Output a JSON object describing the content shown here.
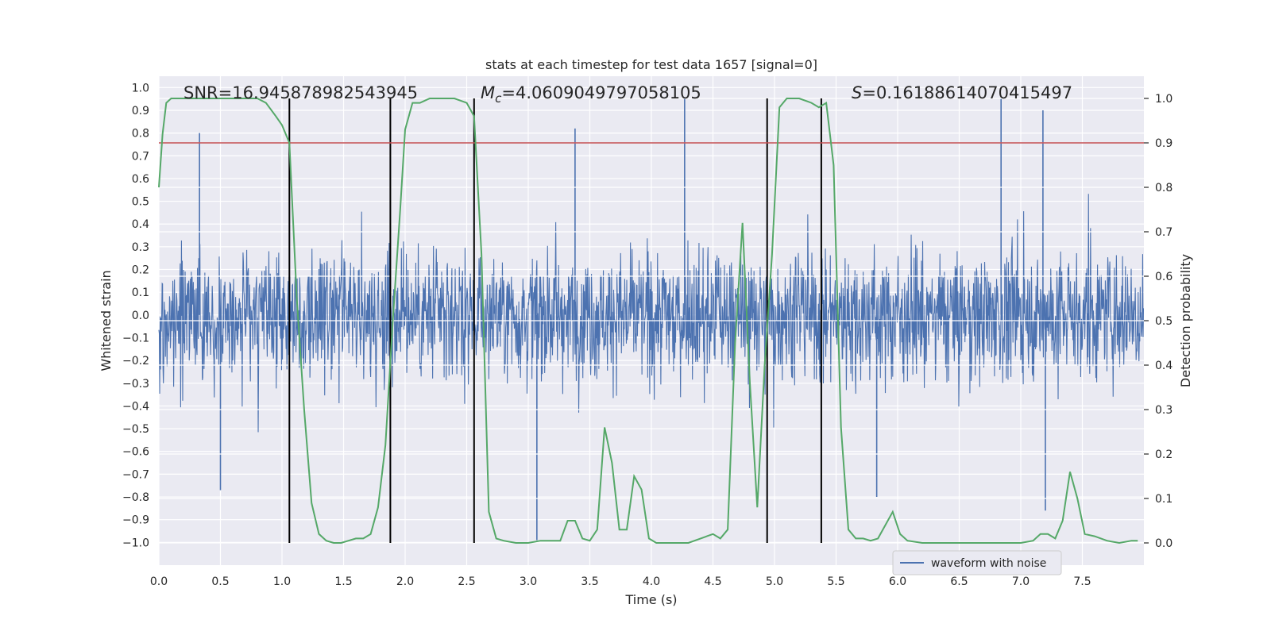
{
  "chart_data": {
    "type": "line",
    "title": "stats at each timestep for test data 1657 [signal=0]",
    "xlabel": "Time (s)",
    "ylabel_left": "Whitened strain",
    "ylabel_right": "Detection probability",
    "xlim": [
      0,
      8
    ],
    "ylim_left": [
      -1.1,
      1.05
    ],
    "ylim_right": [
      -0.05,
      1.05
    ],
    "x_ticks": [
      "0.0",
      "0.5",
      "1.0",
      "1.5",
      "2.0",
      "2.5",
      "3.0",
      "3.5",
      "4.0",
      "4.5",
      "5.0",
      "5.5",
      "6.0",
      "6.5",
      "7.0",
      "7.5"
    ],
    "y_ticks_left": [
      "1.0",
      "0.9",
      "0.8",
      "0.7",
      "0.6",
      "0.5",
      "0.4",
      "0.3",
      "0.2",
      "0.1",
      "0.0",
      "-0.1",
      "-0.2",
      "-0.3",
      "-0.4",
      "-0.5",
      "-0.6",
      "-0.7",
      "-0.8",
      "-0.9",
      "-1.0"
    ],
    "y_ticks_right": [
      "1.0",
      "0.9",
      "0.8",
      "0.7",
      "0.6",
      "0.5",
      "0.4",
      "0.3",
      "0.2",
      "0.1",
      "0.0"
    ],
    "annotations": {
      "snr": "SNR=16.945878982543945",
      "mc_symbol": "M",
      "mc_sub": "c",
      "mc_value": "=4.0609049797058105",
      "s_symbol": "S",
      "s_value": "=0.16188614070415497"
    },
    "threshold_right": 0.9,
    "vertical_lines_x": [
      1.06,
      1.88,
      2.56,
      4.94,
      5.38
    ],
    "legend": {
      "label": "waveform with noise",
      "location": "lower-right"
    },
    "series": [
      {
        "name": "waveform with noise",
        "color": "#4c72b0",
        "description": "noise waveform, peaks roughly between -1.0 and 0.95 whitened strain",
        "peak_points": [
          {
            "x": 0.33,
            "y": 0.8
          },
          {
            "x": 3.38,
            "y": 0.82
          },
          {
            "x": 4.27,
            "y": 0.95
          },
          {
            "x": 6.84,
            "y": 0.95
          },
          {
            "x": 7.18,
            "y": 0.9
          },
          {
            "x": 3.07,
            "y": -0.99
          },
          {
            "x": 5.83,
            "y": -0.8
          },
          {
            "x": 7.2,
            "y": -0.86
          },
          {
            "x": 0.5,
            "y": -0.77
          }
        ]
      },
      {
        "name": "detection probability",
        "color": "#55a868",
        "axis": "right",
        "x": [
          0.0,
          0.03,
          0.06,
          0.1,
          0.15,
          0.3,
          0.5,
          0.8,
          0.87,
          0.95,
          1.0,
          1.06,
          1.12,
          1.18,
          1.24,
          1.3,
          1.36,
          1.42,
          1.48,
          1.54,
          1.6,
          1.66,
          1.72,
          1.78,
          1.84,
          1.9,
          1.96,
          2.0,
          2.06,
          2.12,
          2.2,
          2.4,
          2.5,
          2.56,
          2.62,
          2.68,
          2.74,
          2.8,
          2.9,
          3.0,
          3.1,
          3.2,
          3.26,
          3.32,
          3.38,
          3.44,
          3.5,
          3.56,
          3.62,
          3.68,
          3.74,
          3.8,
          3.86,
          3.92,
          3.98,
          4.04,
          4.1,
          4.2,
          4.3,
          4.4,
          4.5,
          4.56,
          4.62,
          4.68,
          4.74,
          4.8,
          4.86,
          4.92,
          4.98,
          5.04,
          5.1,
          5.2,
          5.3,
          5.36,
          5.42,
          5.48,
          5.54,
          5.6,
          5.66,
          5.72,
          5.78,
          5.84,
          5.9,
          5.96,
          6.02,
          6.08,
          6.2,
          6.5,
          6.8,
          7.0,
          7.1,
          7.16,
          7.22,
          7.28,
          7.34,
          7.4,
          7.46,
          7.52,
          7.6,
          7.7,
          7.8,
          7.9,
          7.95
        ],
        "y": [
          0.8,
          0.92,
          0.99,
          1.0,
          1.0,
          1.0,
          1.0,
          1.0,
          0.99,
          0.96,
          0.94,
          0.9,
          0.55,
          0.3,
          0.09,
          0.02,
          0.005,
          0.0,
          0.0,
          0.005,
          0.01,
          0.01,
          0.02,
          0.08,
          0.22,
          0.5,
          0.75,
          0.93,
          0.99,
          0.99,
          1.0,
          1.0,
          0.99,
          0.96,
          0.65,
          0.07,
          0.01,
          0.005,
          0.0,
          0.0,
          0.005,
          0.005,
          0.005,
          0.05,
          0.05,
          0.01,
          0.005,
          0.03,
          0.26,
          0.18,
          0.03,
          0.03,
          0.15,
          0.12,
          0.01,
          0.0,
          0.0,
          0.0,
          0.0,
          0.01,
          0.02,
          0.01,
          0.03,
          0.45,
          0.72,
          0.36,
          0.08,
          0.4,
          0.65,
          0.98,
          1.0,
          1.0,
          0.99,
          0.98,
          0.99,
          0.85,
          0.26,
          0.03,
          0.01,
          0.01,
          0.005,
          0.01,
          0.04,
          0.07,
          0.02,
          0.005,
          0.0,
          0.0,
          0.0,
          0.0,
          0.005,
          0.02,
          0.02,
          0.01,
          0.05,
          0.16,
          0.1,
          0.02,
          0.015,
          0.005,
          0.0,
          0.005,
          0.005
        ]
      }
    ]
  }
}
